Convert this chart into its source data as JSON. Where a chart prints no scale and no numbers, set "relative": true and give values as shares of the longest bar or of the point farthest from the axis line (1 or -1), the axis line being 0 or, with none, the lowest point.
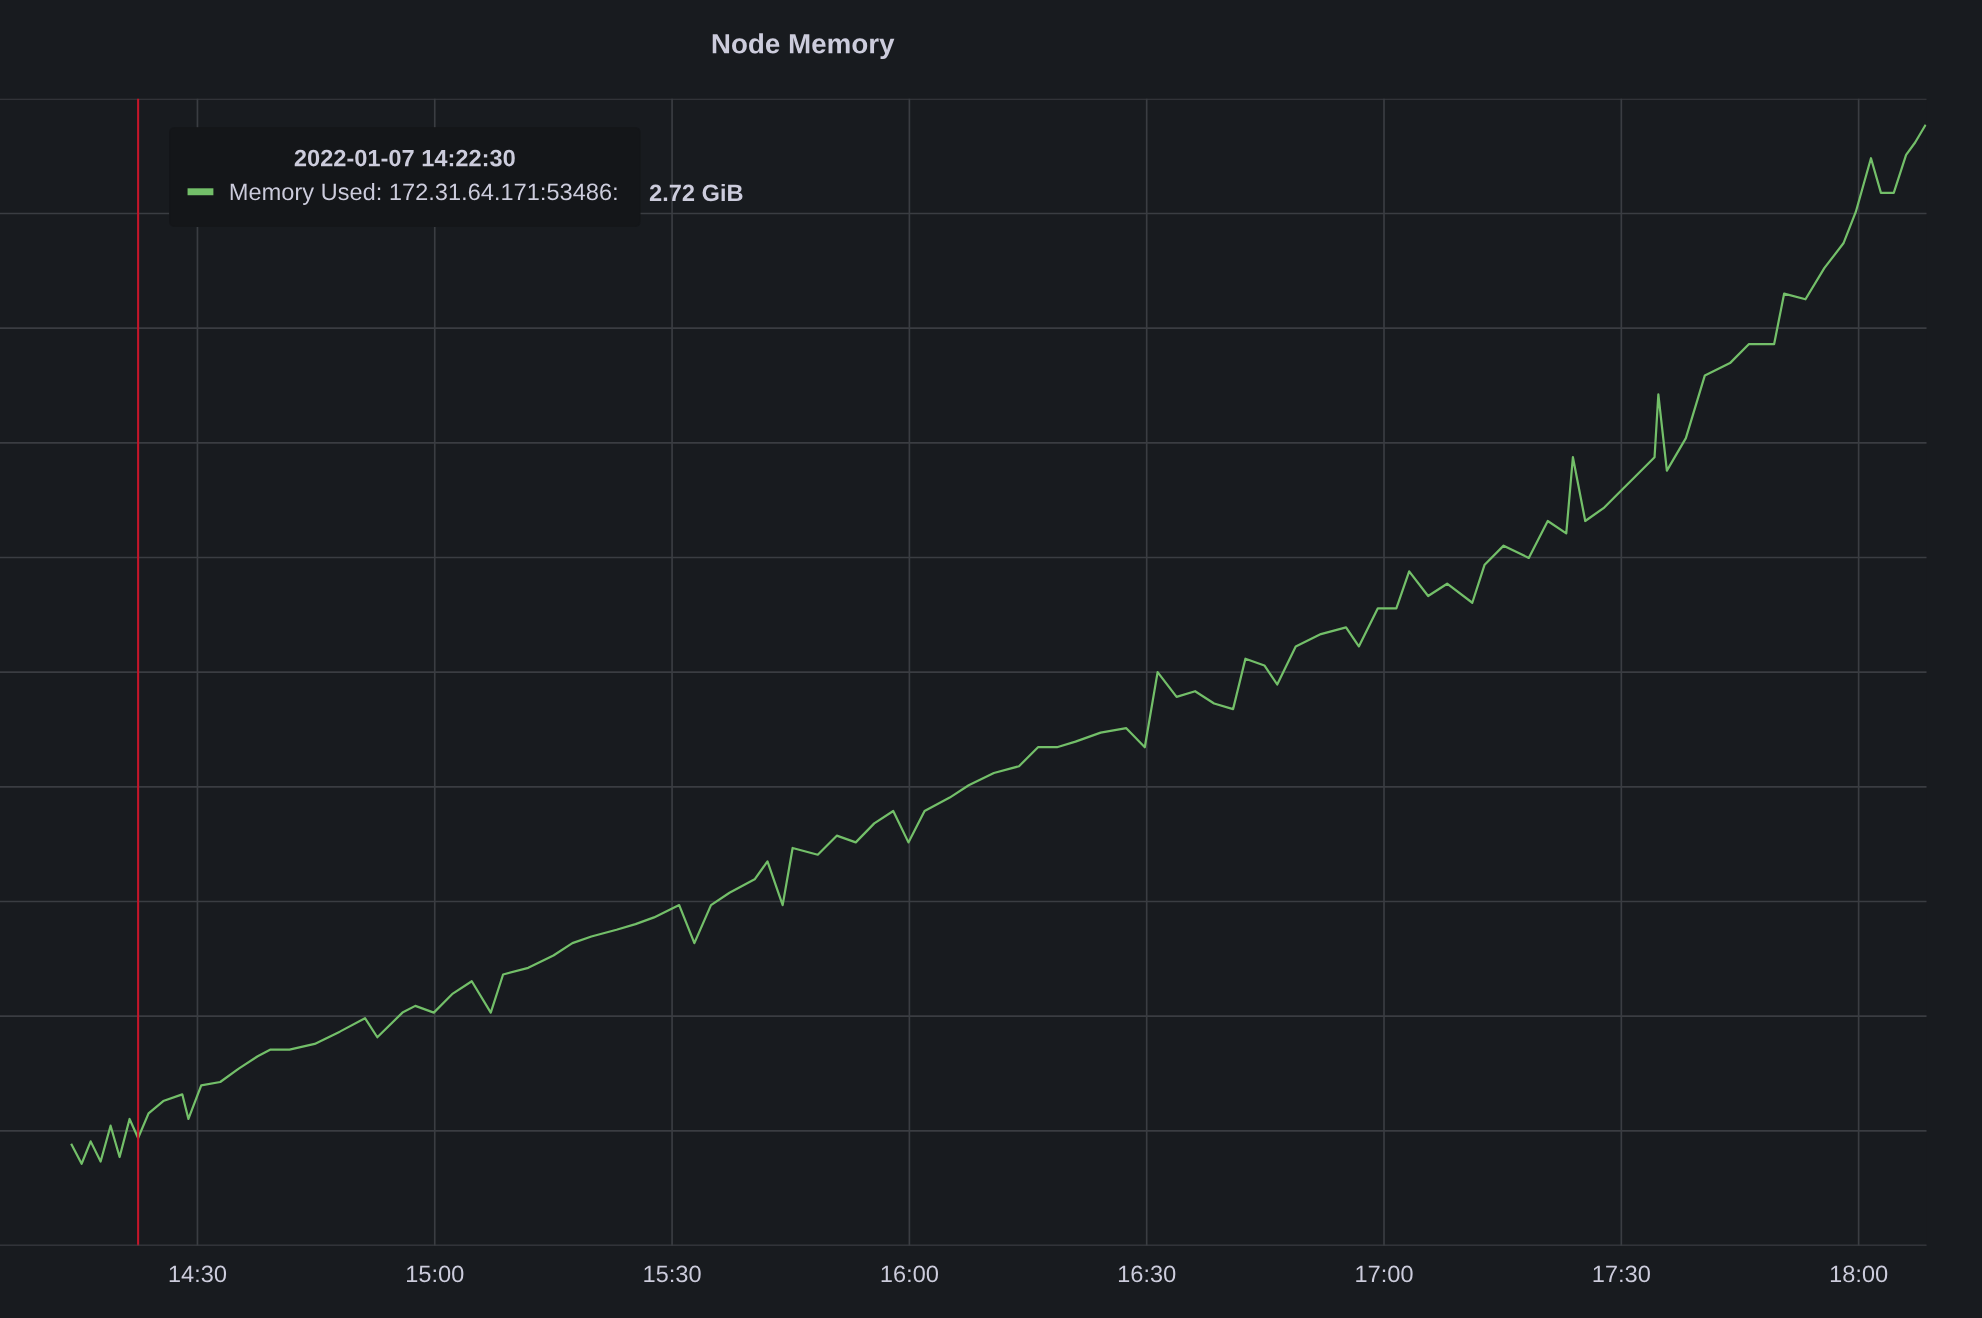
{
  "chart_data": {
    "type": "line",
    "title": "Node Memory",
    "relative": true,
    "xlim": [
      14.084,
      18.143
    ],
    "xticks": [
      {
        "value": 14.5,
        "label": "14:30"
      },
      {
        "value": 15.0,
        "label": "15:00"
      },
      {
        "value": 15.5,
        "label": "15:30"
      },
      {
        "value": 16.0,
        "label": "16:00"
      },
      {
        "value": 16.5,
        "label": "16:30"
      },
      {
        "value": 17.0,
        "label": "17:00"
      },
      {
        "value": 17.5,
        "label": "17:30"
      },
      {
        "value": 18.0,
        "label": "18:00"
      }
    ],
    "grid": true,
    "legend": "top left",
    "legend_title": "2022-01-07 14:22:30",
    "ref_lines": [
      {
        "axis": "x",
        "value": 14.375,
        "label": null,
        "color": "#c4162a"
      }
    ],
    "annotations": [
      "2.72 GiB"
    ],
    "x": [
      14.235,
      14.256,
      14.275,
      14.296,
      14.317,
      14.336,
      14.357,
      14.375,
      14.397,
      14.428,
      14.468,
      14.481,
      14.508,
      14.548,
      14.587,
      14.627,
      14.654,
      14.694,
      14.747,
      14.8,
      14.853,
      14.879,
      14.932,
      14.959,
      14.998,
      15.038,
      15.078,
      15.118,
      15.144,
      15.197,
      15.25,
      15.29,
      15.33,
      15.383,
      15.423,
      15.462,
      15.515,
      15.547,
      15.582,
      15.621,
      15.674,
      15.701,
      15.733,
      15.754,
      15.807,
      15.847,
      15.887,
      15.926,
      15.966,
      15.998,
      16.032,
      16.085,
      16.125,
      16.178,
      16.231,
      16.271,
      16.311,
      16.35,
      16.403,
      16.457,
      16.496,
      16.523,
      16.563,
      16.602,
      16.642,
      16.682,
      16.708,
      16.748,
      16.775,
      16.814,
      16.867,
      16.92,
      16.947,
      16.987,
      17.026,
      17.053,
      17.093,
      17.133,
      17.186,
      17.212,
      17.252,
      17.305,
      17.345,
      17.384,
      17.398,
      17.424,
      17.464,
      17.504,
      17.53,
      17.57,
      17.578,
      17.596,
      17.636,
      17.676,
      17.729,
      17.769,
      17.822,
      17.843,
      17.888,
      17.928,
      17.968,
      17.994,
      18.026,
      18.047,
      18.074,
      18.1,
      18.119,
      18.14
    ],
    "series": [
      {
        "name": "Memory Used: 172.31.64.171:53486:",
        "color": "#73bf69",
        "values": [
          0.09,
          0.073,
          0.093,
          0.075,
          0.107,
          0.079,
          0.113,
          0.096,
          0.118,
          0.129,
          0.135,
          0.113,
          0.143,
          0.146,
          0.158,
          0.169,
          0.175,
          0.175,
          0.18,
          0.191,
          0.203,
          0.186,
          0.208,
          0.214,
          0.208,
          0.225,
          0.236,
          0.208,
          0.242,
          0.248,
          0.259,
          0.27,
          0.276,
          0.282,
          0.287,
          0.293,
          0.304,
          0.27,
          0.304,
          0.315,
          0.327,
          0.343,
          0.304,
          0.355,
          0.349,
          0.366,
          0.36,
          0.377,
          0.388,
          0.36,
          0.388,
          0.4,
          0.411,
          0.422,
          0.428,
          0.445,
          0.445,
          0.45,
          0.458,
          0.462,
          0.445,
          0.512,
          0.49,
          0.495,
          0.484,
          0.479,
          0.524,
          0.518,
          0.501,
          0.535,
          0.546,
          0.552,
          0.535,
          0.569,
          0.569,
          0.602,
          0.58,
          0.591,
          0.574,
          0.608,
          0.625,
          0.614,
          0.647,
          0.636,
          0.704,
          0.647,
          0.659,
          0.676,
          0.687,
          0.704,
          0.76,
          0.692,
          0.721,
          0.777,
          0.788,
          0.805,
          0.805,
          0.85,
          0.845,
          0.873,
          0.895,
          0.923,
          0.971,
          0.94,
          0.94,
          0.974,
          0.985,
          1.0
        ]
      }
    ]
  }
}
